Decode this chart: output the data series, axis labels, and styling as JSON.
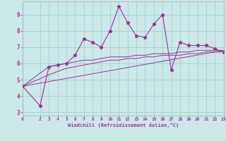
{
  "xlabel": "Windchill (Refroidissement éolien,°C)",
  "bg_color": "#cce8e8",
  "line_color": "#993399",
  "grid_color": "#99cccc",
  "xlim": [
    0,
    23
  ],
  "ylim": [
    2.8,
    9.8
  ],
  "yticks": [
    3,
    4,
    5,
    6,
    7,
    8,
    9
  ],
  "xticks": [
    0,
    2,
    3,
    4,
    5,
    6,
    7,
    8,
    9,
    10,
    11,
    12,
    13,
    14,
    15,
    16,
    17,
    18,
    19,
    20,
    21,
    22,
    23
  ],
  "series1_x": [
    0,
    2,
    3,
    4,
    5,
    6,
    7,
    8,
    9,
    10,
    11,
    12,
    13,
    14,
    15,
    16,
    17,
    18,
    19,
    20,
    21,
    22,
    23
  ],
  "series1_y": [
    4.6,
    3.4,
    5.8,
    5.9,
    6.0,
    6.5,
    7.5,
    7.3,
    7.0,
    8.0,
    9.5,
    8.5,
    7.7,
    7.6,
    8.4,
    9.0,
    5.6,
    7.3,
    7.1,
    7.1,
    7.1,
    6.9,
    6.7
  ],
  "series2_x": [
    0,
    3,
    4,
    5,
    6,
    7,
    8,
    9,
    10,
    11,
    12,
    13,
    14,
    15,
    16,
    17,
    18,
    19,
    20,
    21,
    22,
    23
  ],
  "series2_y": [
    4.6,
    5.8,
    5.9,
    6.0,
    6.1,
    6.2,
    6.2,
    6.3,
    6.4,
    6.4,
    6.4,
    6.5,
    6.5,
    6.6,
    6.6,
    6.6,
    6.7,
    6.7,
    6.8,
    6.8,
    6.8,
    6.8
  ],
  "series3_x": [
    0,
    3,
    4,
    5,
    6,
    7,
    8,
    9,
    10,
    11,
    12,
    13,
    14,
    15,
    16,
    17,
    18,
    19,
    20,
    21,
    22,
    23
  ],
  "series3_y": [
    4.6,
    5.3,
    5.5,
    5.7,
    5.8,
    5.9,
    6.0,
    6.1,
    6.2,
    6.2,
    6.3,
    6.3,
    6.4,
    6.4,
    6.5,
    6.5,
    6.5,
    6.6,
    6.6,
    6.7,
    6.7,
    6.7
  ],
  "series4_x": [
    0,
    23
  ],
  "series4_y": [
    4.6,
    6.8
  ]
}
